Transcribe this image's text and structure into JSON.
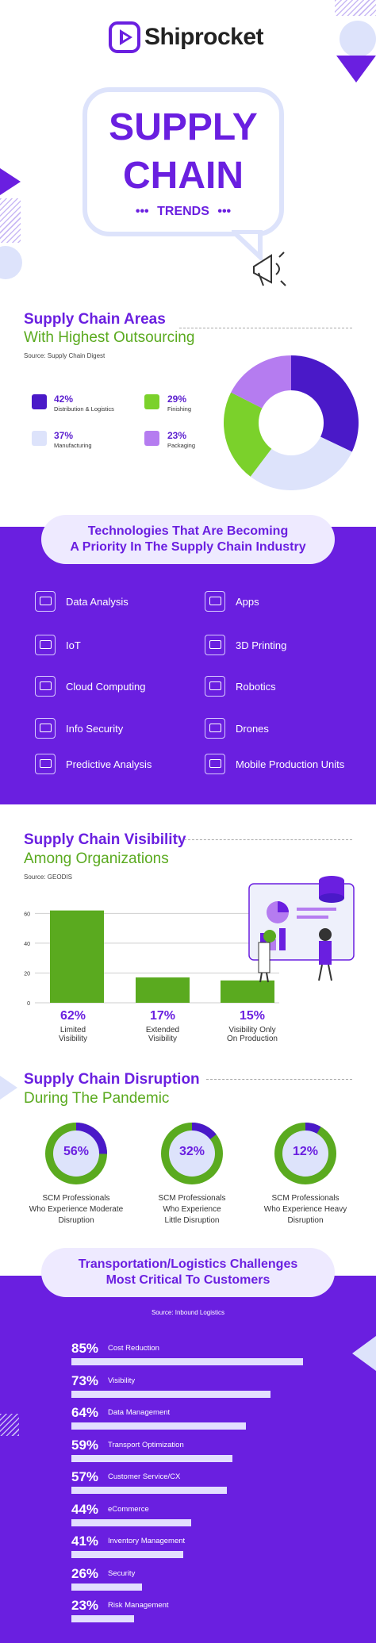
{
  "brand": {
    "name": "Shiprocket"
  },
  "hero": {
    "title_line1": "SUPPLY",
    "title_line2": "CHAIN",
    "tag": "TRENDS"
  },
  "outsourcing": {
    "title": "Supply Chain Areas",
    "subtitle": "With Highest Outsourcing",
    "source": "Source: Supply Chain Digest",
    "items": [
      {
        "pct": "42%",
        "label": "Distribution & Logistics",
        "color": "#4a19c8"
      },
      {
        "pct": "29%",
        "label": "Finishing",
        "color": "#7bd12b"
      },
      {
        "pct": "37%",
        "label": "Manufacturing",
        "color": "#dde3fb"
      },
      {
        "pct": "23%",
        "label": "Packaging",
        "color": "#b57cf0"
      }
    ]
  },
  "technologies": {
    "title_line1": "Technologies That Are Becoming",
    "title_line2": "A Priority In  The Supply Chain Industry",
    "left": [
      "Data Analysis",
      "IoT",
      "Cloud Computing",
      "Info Security",
      "Predictive Analysis"
    ],
    "right": [
      "Apps",
      "3D Printing",
      "Robotics",
      "Drones",
      "Mobile Production Units"
    ]
  },
  "visibility": {
    "title": "Supply Chain Visibility",
    "subtitle": "Among Organizations",
    "source": "Source: GEODIS",
    "bars": [
      {
        "pct": "62%",
        "label_line1": "Limited",
        "label_line2": "Visibility"
      },
      {
        "pct": "17%",
        "label_line1": "Extended",
        "label_line2": "Visibility"
      },
      {
        "pct": "15%",
        "label_line1": "Visibility Only",
        "label_line2": "On Production"
      }
    ]
  },
  "chart_data": {
    "type": "bar",
    "categories": [
      "Limited Visibility",
      "Extended Visibility",
      "Visibility Only On Production"
    ],
    "values": [
      62,
      17,
      15
    ],
    "title": "Supply Chain Visibility Among Organizations",
    "xlabel": "",
    "ylabel": "",
    "ylim": [
      0,
      65
    ],
    "yticks": [
      "0",
      "20",
      "40",
      "60"
    ],
    "bar_color": "#5aaa1f"
  },
  "disruption": {
    "title": "Supply Chain Disruption",
    "subtitle": "During The Pandemic",
    "donuts": [
      {
        "pct": "56%",
        "value": 56,
        "l1": "SCM Professionals",
        "l2": "Who Experience Moderate",
        "l3": "Disruption"
      },
      {
        "pct": "32%",
        "value": 32,
        "l1": "SCM Professionals",
        "l2": "Who Experience",
        "l3": "Little Disruption"
      },
      {
        "pct": "12%",
        "value": 12,
        "l1": "SCM Professionals",
        "l2": "Who Experience Heavy",
        "l3": "Disruption"
      }
    ]
  },
  "logistics": {
    "title_line1": "Transportation/Logistics Challenges",
    "title_line2": "Most Critical To Customers",
    "source": "Source: Inbound Logistics",
    "items": [
      {
        "pct": "85%",
        "value": 85,
        "label": "Cost Reduction"
      },
      {
        "pct": "73%",
        "value": 73,
        "label": "Visibility"
      },
      {
        "pct": "64%",
        "value": 64,
        "label": "Data Management"
      },
      {
        "pct": "59%",
        "value": 59,
        "label": "Transport Optimization"
      },
      {
        "pct": "57%",
        "value": 57,
        "label": "Customer Service/CX"
      },
      {
        "pct": "44%",
        "value": 44,
        "label": "eCommerce"
      },
      {
        "pct": "41%",
        "value": 41,
        "label": "Inventory Management"
      },
      {
        "pct": "26%",
        "value": 26,
        "label": "Security"
      },
      {
        "pct": "23%",
        "value": 23,
        "label": "Risk Management"
      }
    ]
  },
  "colors": {
    "purple": "#6a1fe0",
    "green": "#5aaa1f",
    "light": "#dde3fb"
  }
}
